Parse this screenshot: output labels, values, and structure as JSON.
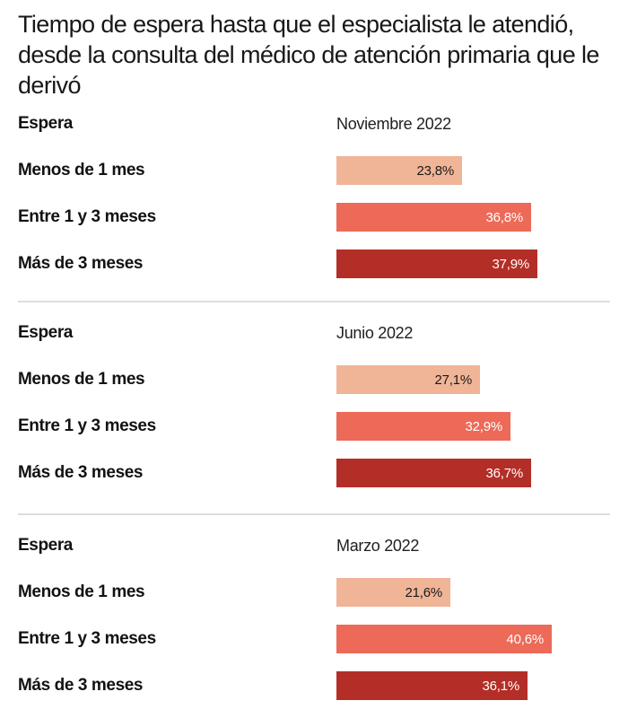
{
  "page": {
    "title": "Tiempo de espera hasta que el especialista le atendió, desde la consulta del médico de atención primaria que le derivó"
  },
  "chart_data": {
    "type": "bar",
    "orientation": "horizontal",
    "title": "Tiempo de espera hasta que el especialista le atendió, desde la consulta del médico de atención primaria que le derivó",
    "column_header": "Espera",
    "categories": [
      "Menos de 1 mes",
      "Entre 1 y 3 meses",
      "Más de 3 meses"
    ],
    "groups": [
      {
        "period": "Noviembre 2022",
        "values": [
          23.8,
          36.8,
          37.9
        ],
        "value_labels": [
          "23,8%",
          "36,8%",
          "37,9%"
        ]
      },
      {
        "period": "Junio 2022",
        "values": [
          27.1,
          32.9,
          36.7
        ],
        "value_labels": [
          "27,1%",
          "32,9%",
          "36,7%"
        ]
      },
      {
        "period": "Marzo 2022",
        "values": [
          21.6,
          40.6,
          36.1
        ],
        "value_labels": [
          "21,6%",
          "40,6%",
          "36,1%"
        ]
      }
    ],
    "bar_colors": [
      "#F0B497",
      "#EC6A57",
      "#B32E26"
    ],
    "value_text_colors": [
      "#1A1A1A",
      "#FFFFFF",
      "#FFFFFF"
    ],
    "xlim": [
      0,
      42
    ],
    "grid": false,
    "legend": "none"
  },
  "style": {
    "divider_color": "#DDDDDD",
    "background": "#FFFFFF",
    "text_color": "#181818"
  }
}
